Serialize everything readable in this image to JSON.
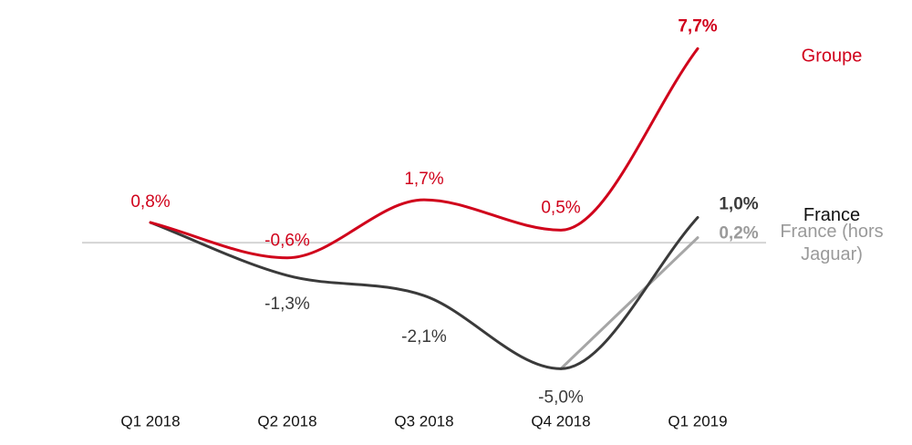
{
  "chart_data": {
    "type": "line",
    "categories": [
      "Q1 2018",
      "Q2 2018",
      "Q3 2018",
      "Q4 2018",
      "Q1 2019"
    ],
    "ylim": [
      -6,
      8
    ],
    "grid": false,
    "zero_line": true,
    "legend_position": "right",
    "series": [
      {
        "name": "Groupe",
        "color": "#d0021b",
        "values": [
          0.8,
          -0.6,
          1.7,
          0.5,
          7.7
        ],
        "labels": [
          "0,8%",
          "-0,6%",
          "1,7%",
          "0,5%",
          "7,7%"
        ]
      },
      {
        "name": "France",
        "color": "#3a3a3a",
        "values": [
          0.8,
          -1.3,
          -2.1,
          -5.0,
          1.0
        ],
        "labels": [
          "",
          "-1,3%",
          "-2,1%",
          "-5,0%",
          "1,0%"
        ]
      },
      {
        "name": "France (hors Jaguar)",
        "name_lines": [
          "France (hors",
          "Jaguar)"
        ],
        "color": "#a6a6a6",
        "values": [
          null,
          null,
          null,
          -5.0,
          0.2
        ],
        "labels": [
          "",
          "",
          "",
          "",
          "0,2%"
        ]
      }
    ]
  }
}
